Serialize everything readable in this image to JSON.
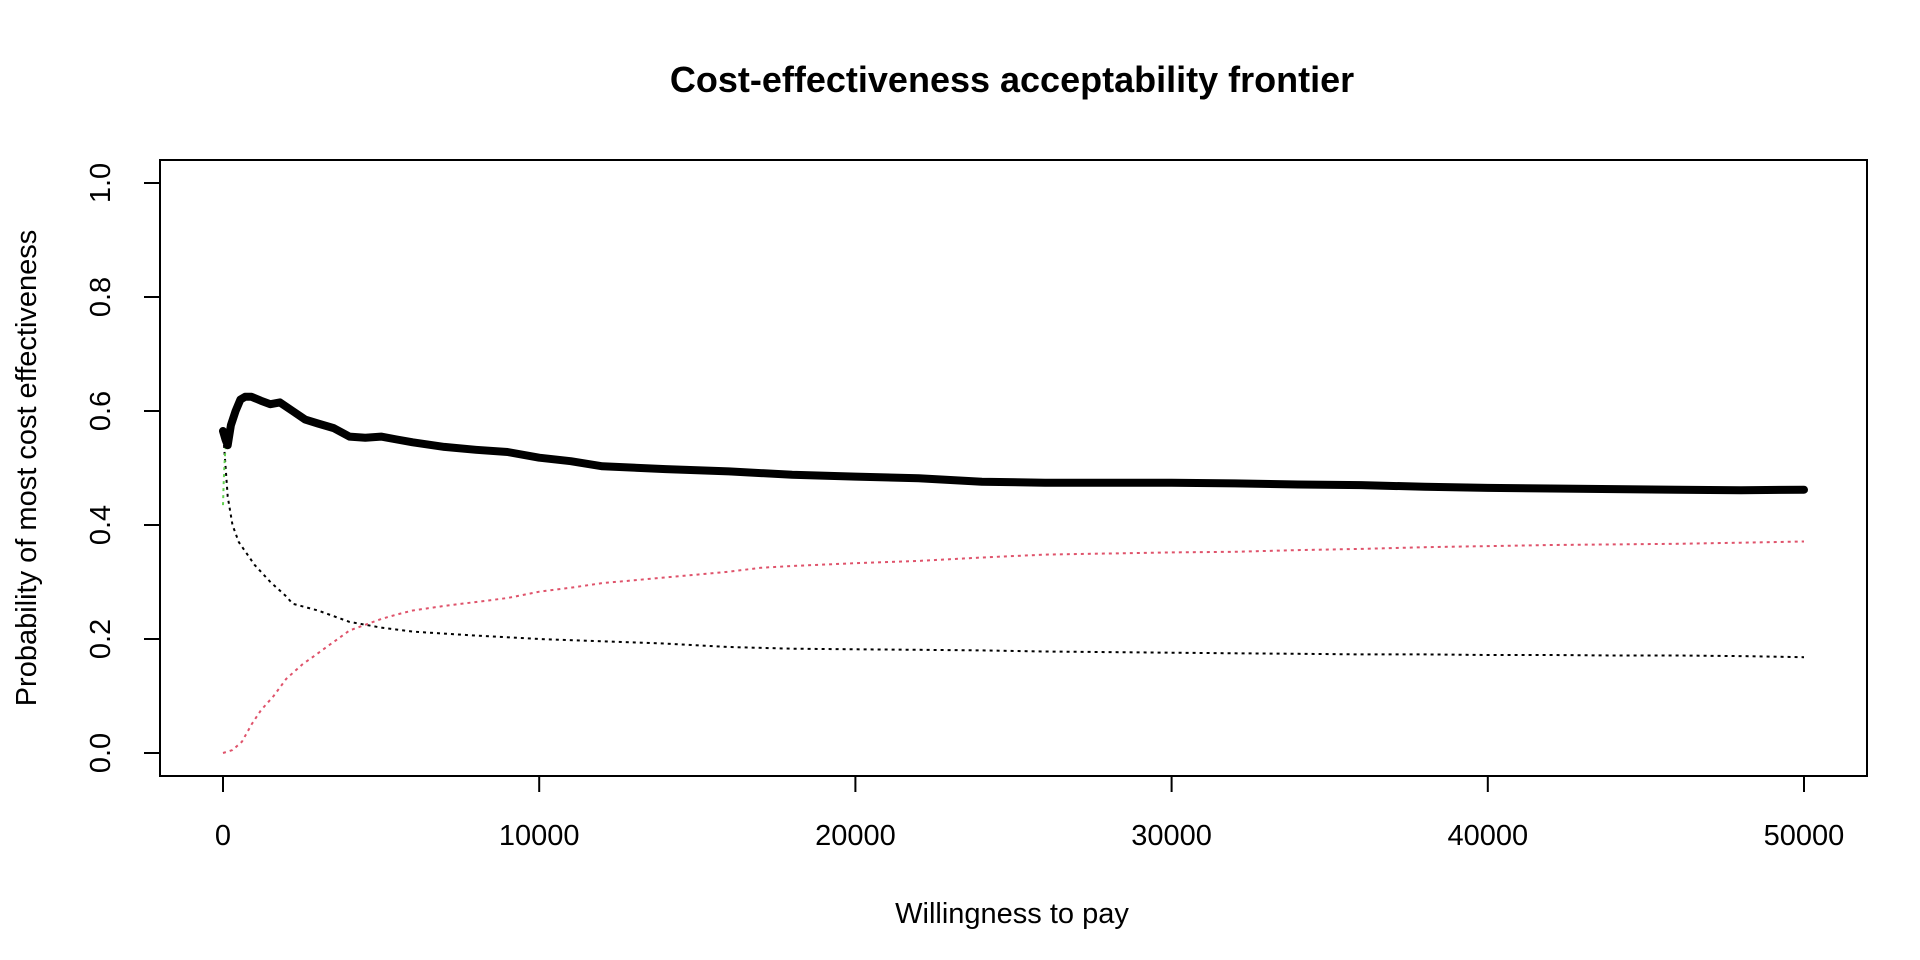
{
  "chart_data": {
    "type": "line",
    "title": "Cost-effectiveness acceptability frontier",
    "xlabel": "Willingness to pay",
    "ylabel": "Probability of most cost effectiveness",
    "xlim": [
      0,
      50000
    ],
    "ylim": [
      0,
      1
    ],
    "x_ticks": [
      0,
      10000,
      20000,
      30000,
      40000,
      50000
    ],
    "x_tick_labels": [
      "0",
      "10000",
      "20000",
      "30000",
      "40000",
      "50000"
    ],
    "y_ticks": [
      0,
      0.2,
      0.4,
      0.6,
      0.8,
      1
    ],
    "y_tick_labels": [
      "0.0",
      "0.2",
      "0.4",
      "0.6",
      "0.8",
      "1.0"
    ],
    "grid": false,
    "legend": "none",
    "series": [
      {
        "role": "frontier",
        "style": "solid-thick",
        "color": "#000000",
        "points": [
          [
            0,
            0.565
          ],
          [
            80,
            0.55
          ],
          [
            150,
            0.54
          ],
          [
            250,
            0.575
          ],
          [
            400,
            0.6
          ],
          [
            550,
            0.62
          ],
          [
            700,
            0.625
          ],
          [
            900,
            0.625
          ],
          [
            1200,
            0.618
          ],
          [
            1500,
            0.612
          ],
          [
            1800,
            0.615
          ],
          [
            2200,
            0.6
          ],
          [
            2600,
            0.585
          ],
          [
            3000,
            0.578
          ],
          [
            3500,
            0.57
          ],
          [
            4000,
            0.555
          ],
          [
            4500,
            0.553
          ],
          [
            5000,
            0.555
          ],
          [
            5500,
            0.55
          ],
          [
            6000,
            0.545
          ],
          [
            7000,
            0.537
          ],
          [
            8000,
            0.532
          ],
          [
            9000,
            0.528
          ],
          [
            10000,
            0.518
          ],
          [
            11000,
            0.512
          ],
          [
            12000,
            0.503
          ],
          [
            14000,
            0.498
          ],
          [
            16000,
            0.494
          ],
          [
            18000,
            0.488
          ],
          [
            20000,
            0.485
          ],
          [
            22000,
            0.482
          ],
          [
            24000,
            0.476
          ],
          [
            26000,
            0.474
          ],
          [
            28000,
            0.474
          ],
          [
            30000,
            0.474
          ],
          [
            32000,
            0.473
          ],
          [
            34000,
            0.471
          ],
          [
            36000,
            0.47
          ],
          [
            38000,
            0.467
          ],
          [
            40000,
            0.465
          ],
          [
            42000,
            0.464
          ],
          [
            44000,
            0.463
          ],
          [
            46000,
            0.462
          ],
          [
            48000,
            0.461
          ],
          [
            50000,
            0.462
          ]
        ]
      },
      {
        "role": "option-1",
        "style": "dotted",
        "color": "#000000",
        "points": [
          [
            0,
            0.565
          ],
          [
            150,
            0.45
          ],
          [
            300,
            0.4
          ],
          [
            500,
            0.37
          ],
          [
            1000,
            0.33
          ],
          [
            1500,
            0.3
          ],
          [
            2000,
            0.275
          ],
          [
            2200,
            0.262
          ],
          [
            3000,
            0.25
          ],
          [
            4000,
            0.23
          ],
          [
            5000,
            0.22
          ],
          [
            6000,
            0.213
          ],
          [
            8000,
            0.206
          ],
          [
            10000,
            0.2
          ],
          [
            12000,
            0.196
          ],
          [
            14000,
            0.192
          ],
          [
            16000,
            0.186
          ],
          [
            18000,
            0.183
          ],
          [
            20000,
            0.182
          ],
          [
            22000,
            0.181
          ],
          [
            24000,
            0.18
          ],
          [
            26000,
            0.178
          ],
          [
            28000,
            0.177
          ],
          [
            30000,
            0.176
          ],
          [
            32000,
            0.175
          ],
          [
            34000,
            0.174
          ],
          [
            36000,
            0.173
          ],
          [
            38000,
            0.173
          ],
          [
            40000,
            0.172
          ],
          [
            42000,
            0.172
          ],
          [
            44000,
            0.171
          ],
          [
            46000,
            0.171
          ],
          [
            48000,
            0.17
          ],
          [
            50000,
            0.168
          ]
        ]
      },
      {
        "role": "option-2",
        "style": "dotted",
        "color": "#DF536B",
        "points": [
          [
            0,
            0
          ],
          [
            300,
            0.005
          ],
          [
            600,
            0.02
          ],
          [
            900,
            0.05
          ],
          [
            1200,
            0.075
          ],
          [
            1600,
            0.1
          ],
          [
            2000,
            0.13
          ],
          [
            2500,
            0.155
          ],
          [
            3000,
            0.175
          ],
          [
            3500,
            0.195
          ],
          [
            4000,
            0.215
          ],
          [
            4500,
            0.225
          ],
          [
            5000,
            0.235
          ],
          [
            5500,
            0.243
          ],
          [
            6000,
            0.25
          ],
          [
            7000,
            0.258
          ],
          [
            8000,
            0.265
          ],
          [
            9000,
            0.272
          ],
          [
            10000,
            0.283
          ],
          [
            11000,
            0.29
          ],
          [
            12000,
            0.298
          ],
          [
            13000,
            0.303
          ],
          [
            14000,
            0.308
          ],
          [
            15000,
            0.313
          ],
          [
            16000,
            0.318
          ],
          [
            17000,
            0.325
          ],
          [
            18000,
            0.328
          ],
          [
            20000,
            0.333
          ],
          [
            22000,
            0.337
          ],
          [
            24000,
            0.343
          ],
          [
            26000,
            0.348
          ],
          [
            28000,
            0.35
          ],
          [
            30000,
            0.352
          ],
          [
            32000,
            0.353
          ],
          [
            34000,
            0.356
          ],
          [
            36000,
            0.358
          ],
          [
            38000,
            0.361
          ],
          [
            40000,
            0.363
          ],
          [
            42000,
            0.365
          ],
          [
            44000,
            0.366
          ],
          [
            46000,
            0.367
          ],
          [
            48000,
            0.369
          ],
          [
            50000,
            0.371
          ]
        ]
      },
      {
        "role": "option-3",
        "style": "dotted",
        "color": "#61D04F",
        "points": [
          [
            0,
            0.435
          ],
          [
            20,
            0.47
          ],
          [
            40,
            0.5
          ],
          [
            60,
            0.52
          ],
          [
            80,
            0.535
          ],
          [
            100,
            0.54
          ]
        ]
      }
    ]
  }
}
